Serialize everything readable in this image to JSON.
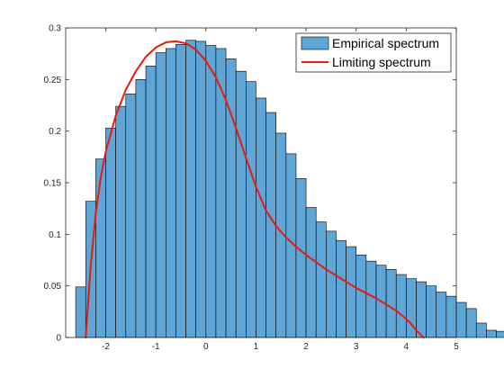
{
  "chart_data": {
    "type": "bar",
    "bin_width": 0.2,
    "bin_start": -2.6,
    "histogram_values": [
      0.049,
      0.132,
      0.173,
      0.203,
      0.224,
      0.236,
      0.25,
      0.263,
      0.276,
      0.28,
      0.284,
      0.288,
      0.287,
      0.283,
      0.28,
      0.27,
      0.258,
      0.248,
      0.232,
      0.218,
      0.198,
      0.178,
      0.154,
      0.126,
      0.112,
      0.103,
      0.094,
      0.088,
      0.08,
      0.074,
      0.07,
      0.066,
      0.061,
      0.057,
      0.054,
      0.05,
      0.044,
      0.04,
      0.034,
      0.028,
      0.014,
      0.007,
      0.006
    ],
    "curve": {
      "x": [
        -2.4,
        -2.3,
        -2.2,
        -2.1,
        -2.0,
        -1.8,
        -1.6,
        -1.4,
        -1.2,
        -1.0,
        -0.8,
        -0.6,
        -0.4,
        -0.2,
        0.0,
        0.2,
        0.4,
        0.6,
        0.8,
        1.0,
        1.2,
        1.4,
        1.6,
        1.8,
        2.0,
        2.2,
        2.4,
        2.6,
        2.8,
        3.0,
        3.2,
        3.4,
        3.6,
        3.8,
        4.0,
        4.1,
        4.2,
        4.3,
        4.35
      ],
      "y": [
        0.0,
        0.07,
        0.12,
        0.155,
        0.18,
        0.215,
        0.24,
        0.258,
        0.272,
        0.281,
        0.286,
        0.287,
        0.285,
        0.279,
        0.268,
        0.252,
        0.23,
        0.203,
        0.174,
        0.146,
        0.123,
        0.108,
        0.097,
        0.088,
        0.08,
        0.073,
        0.066,
        0.06,
        0.054,
        0.048,
        0.043,
        0.038,
        0.032,
        0.026,
        0.018,
        0.013,
        0.007,
        0.002,
        0.0
      ]
    },
    "xlim": [
      -2.8,
      5
    ],
    "ylim": [
      0,
      0.3
    ],
    "x_ticks": [
      -2,
      -1,
      0,
      1,
      2,
      3,
      4,
      5
    ],
    "y_ticks": [
      0,
      0.05,
      0.1,
      0.15,
      0.2,
      0.25,
      0.3
    ],
    "x_tick_labels": [
      "-2",
      "-1",
      "0",
      "1",
      "2",
      "3",
      "4",
      "5"
    ],
    "y_tick_labels": [
      "0",
      "0.05",
      "0.1",
      "0.15",
      "0.2",
      "0.25",
      "0.3"
    ],
    "legend": {
      "position": "top-right",
      "entries": [
        {
          "label": "Empirical spectrum",
          "kind": "patch",
          "color": "#5fa6d7"
        },
        {
          "label": "Limiting spectrum",
          "kind": "line",
          "color": "#e8190f"
        }
      ]
    },
    "colors": {
      "bar_fill": "#5fa6d7",
      "bar_edge": "#000000",
      "curve": "#e8190f"
    },
    "grid": false,
    "title": "",
    "xlabel": "",
    "ylabel": ""
  }
}
